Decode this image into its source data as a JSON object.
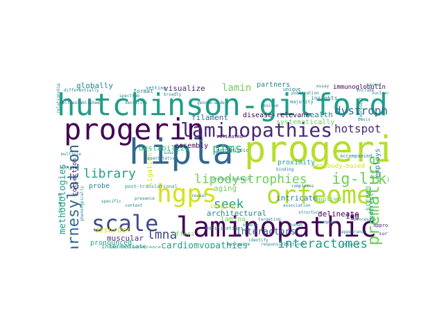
{
  "wordcloud": {
    "words": {
      "hutchinson_gilford": "hutchinson-gilford",
      "progeria": "progeria",
      "hipla": "hipla",
      "laminopathic": "laminopathic",
      "progerin": "progerin",
      "laminopathies": "laminopathies",
      "orfeome": "orfeome",
      "hgps": "hgps",
      "scale": "scale",
      "premature": "premature",
      "farnesylation": "farnesylation",
      "interactomes": "interactomes",
      "ig_like": "ig-like",
      "library": "library",
      "lipodystrophies": "lipodystrophies",
      "lmna": "lmna",
      "ptms": "ptms",
      "seek": "seek",
      "dystrophies": "dystrophies",
      "hotspot": "hotspot",
      "interactors": "interactors",
      "cardiomyopathies": "cardiomyopathies",
      "methodologies": "methodologies",
      "lamin": "lamin",
      "visualize": "visualize",
      "filament": "filament",
      "disease_relevant": "disease-relevant",
      "destabilize": "destabilize",
      "systematically": "systematically",
      "globally": "globally",
      "immunoglobulin": "immunoglobulin",
      "partners": "partners",
      "health": "health",
      "aging": "aging",
      "architectural": "architectural",
      "intricate": "intricate",
      "delineate": "delineate",
      "muscular": "muscular",
      "disorder": "disorder",
      "lamina": "lamina",
      "employs": "employs",
      "antibody_based": "antibody-based",
      "proximity": "proximity",
      "assembly": "assembly",
      "ligation": "ligation",
      "pronounced": "pronounced",
      "collection": "collection",
      "intermediate": "intermediate",
      "syndromes": "syndromes",
      "immunofluorescence": "immunofluorescence",
      "offers": "offers",
      "imaging": "imaging",
      "applied": "applied",
      "igg": "igg",
      "probe": "probe",
      "post_translational": "post-translational",
      "screen": "screen",
      "indirect": "indirect",
      "format": "format",
      "insights": "insights",
      "validated": "validated",
      "mechanistic": "mechanistic",
      "modifications": "modifications",
      "nucleus": "nucleus",
      "isoform": "isoform",
      "variants": "variants",
      "surface": "surface",
      "approach": "approach",
      "setting": "setting",
      "well_established": "well-established",
      "relationship": "relationship",
      "differentially": "differentially",
      "sensitive": "sensitive",
      "subset": "subset",
      "residue": "residue",
      "majority": "majority",
      "unique": "unique",
      "complexes": "complexes",
      "accompanied": "accompanied",
      "basis": "basis",
      "caused": "caused",
      "essay": "essay",
      "cellular": "cellular",
      "diverse": "diverse",
      "affect": "affect",
      "appearance": "appearance",
      "reveal": "reveal",
      "context": "context",
      "targeting": "targeting",
      "association": "association",
      "genome_wide": "genome-wide",
      "publication": "publication",
      "represent": "represent",
      "nuclear": "nuclear",
      "include": "include",
      "compare": "compare",
      "specific": "specific",
      "quantitative": "quantitative",
      "mechanism": "mechanism",
      "responsible": "responsible",
      "distinct": "distinct",
      "human": "human",
      "processes": "processes",
      "binding": "binding",
      "structure": "structure",
      "presence": "presence",
      "enable": "enable",
      "protein_protein": "protein-protein",
      "identify": "identify",
      "broadly": "broadly",
      "phenotypically": "phenotypically",
      "multiple": "multiple",
      "spectrum": "spectrum"
    },
    "palette": {
      "dark_purple": "#440154",
      "purple": "#482878",
      "indigo": "#3e4989",
      "blue": "#31688e",
      "teal_blue": "#26828e",
      "teal": "#1f9e89",
      "green": "#35b779",
      "light_green": "#6ece58",
      "lime": "#b5de2b",
      "yellow": "#d2e21b"
    }
  }
}
